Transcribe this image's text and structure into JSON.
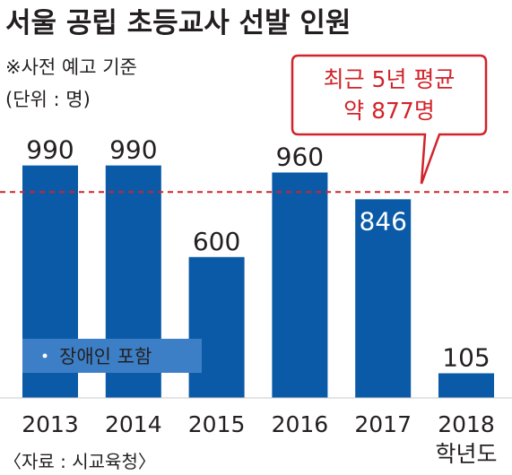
{
  "chart_data": {
    "type": "bar",
    "title": "서울 공립 초등교사 선발 인원",
    "subtitle": "※사전 예고 기준",
    "unit_note": "(단위 : 명)",
    "categories": [
      "2013",
      "2014",
      "2015",
      "2016",
      "2017",
      "2018"
    ],
    "values": [
      990,
      990,
      600,
      960,
      846,
      105
    ],
    "value_labels": [
      "990",
      "990",
      "600",
      "960",
      "846",
      "105"
    ],
    "x_unit": "학년도",
    "ylim": [
      0,
      1100
    ],
    "grid": false,
    "legend": {
      "text": "장애인 포함",
      "placement": "bottom-left"
    },
    "reference_line": {
      "value": 877,
      "label_line1": "최근 5년 평균",
      "label_line2": "약 877명"
    },
    "source": "〈자료 : 시교육청〉",
    "colors": {
      "bar": "#0a5aa7",
      "reference": "#d1232a",
      "legend_box": "#3d7fc6"
    }
  }
}
